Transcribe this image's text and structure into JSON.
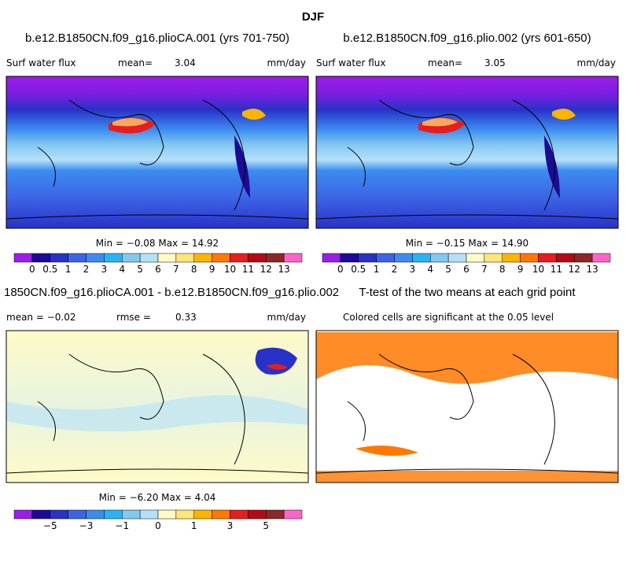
{
  "title": "DJF",
  "panels": [
    {
      "title": "b.e12.B1850CN.f09_g16.plioCA.001 (yrs 701-750)",
      "left": "Surf water flux",
      "mean_label": "mean=",
      "mean": "3.04",
      "units": "mm/day",
      "minmax": "Min =  −0.08 Max =  14.92"
    },
    {
      "title": "b.e12.B1850CN.f09_g16.plio.002 (yrs 601-650)",
      "left": "Surf water flux",
      "mean_label": "mean=",
      "mean": "3.05",
      "units": "mm/day",
      "minmax": "Min =  −0.15 Max =  14.90"
    },
    {
      "title": "1850CN.f09_g16.plioCA.001 - b.e12.B1850CN.f09_g16.plio.002",
      "left": "mean =  −0.02",
      "mean_label": "rmse =",
      "mean": "0.33",
      "units": "mm/day",
      "minmax": "Min =  −6.20 Max =   4.04"
    },
    {
      "title": "T-test of the two means at each grid point",
      "left": "Colored cells are significant at the 0.05 level"
    }
  ],
  "colorbars": [
    {
      "colors": [
        "#9b1ee6",
        "#1e0a96",
        "#2832c8",
        "#3c64e6",
        "#3c8cf0",
        "#28b4f5",
        "#82c8f0",
        "#b4e1fa",
        "#fffac8",
        "#ffe678",
        "#ffb400",
        "#ff7800",
        "#e61e1e",
        "#b40a14",
        "#8c2828",
        "#ff64c8"
      ],
      "labels": [
        "0",
        "0.5",
        "1",
        "2",
        "3",
        "4",
        "5",
        "6",
        "7",
        "8",
        "9",
        "10",
        "11",
        "12",
        "13"
      ]
    },
    {
      "colors": [
        "#9b1ee6",
        "#1e0a96",
        "#2832c8",
        "#3c64e6",
        "#3c8cf0",
        "#28b4f5",
        "#82c8f0",
        "#b4e1fa",
        "#fffac8",
        "#ffe678",
        "#ffb400",
        "#ff7800",
        "#e61e1e",
        "#b40a14",
        "#8c2828",
        "#ff64c8"
      ],
      "labels": [
        "−5",
        "−3",
        "−1",
        "0",
        "1",
        "3",
        "5"
      ]
    }
  ]
}
